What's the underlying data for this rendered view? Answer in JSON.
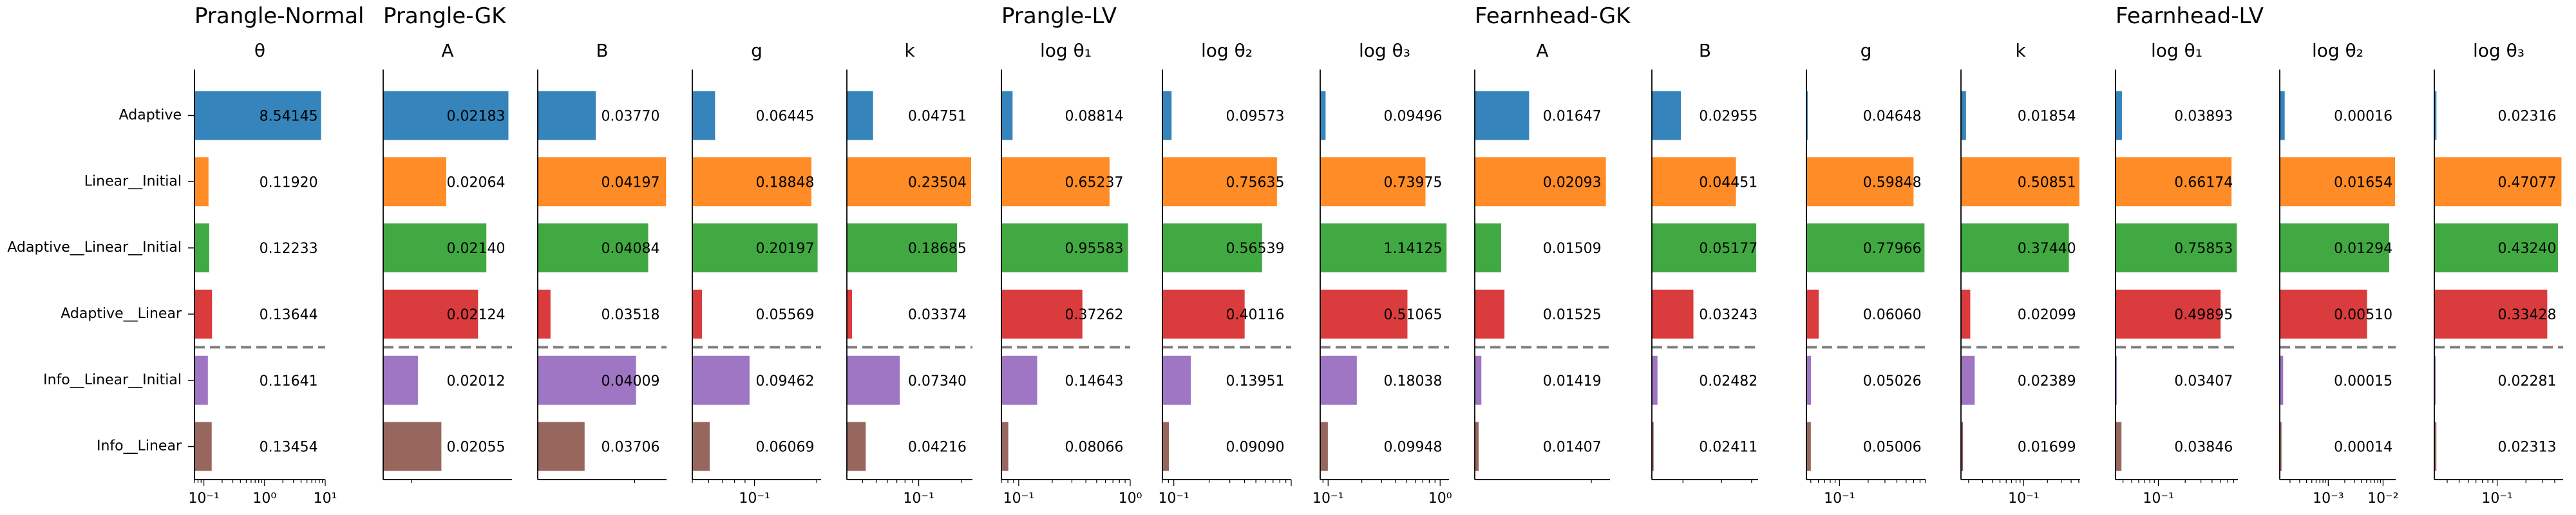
{
  "method_labels": [
    "Adaptive",
    "Linear__Initial",
    "Adaptive__Linear__Initial",
    "Adaptive__Linear",
    "Info__Linear__Initial",
    "Info__Linear"
  ],
  "colors": [
    "#1f77b4",
    "#ff7f0e",
    "#2ca02c",
    "#d62728",
    "#9467bd",
    "#8c564b"
  ],
  "group_titles": [
    "Prangle-Normal",
    "Prangle-GK",
    "Prangle-LV",
    "Fearnhead-GK",
    "Fearnhead-LV"
  ],
  "chart_data": {
    "type": "bar",
    "orientation": "horizontal",
    "categories": [
      "Adaptive",
      "Linear__Initial",
      "Adaptive__Linear__Initial",
      "Adaptive__Linear",
      "Info__Linear__Initial",
      "Info__Linear"
    ],
    "separator_after_index": 3,
    "panels": [
      {
        "group": "Prangle-Normal",
        "title": "θ",
        "xscale": "log",
        "xlim": [
          0.07,
          10
        ],
        "ticks": [
          {
            "v": 0.1,
            "l": "10⁻¹"
          },
          {
            "v": 1,
            "l": "10⁰"
          },
          {
            "v": 10,
            "l": "10¹"
          }
        ],
        "values": [
          8.54145,
          0.1192,
          0.12233,
          0.13644,
          0.11641,
          0.13454
        ],
        "labels": [
          "8.54145",
          "0.11920",
          "0.12233",
          "0.13644",
          "0.11641",
          "0.13454"
        ]
      },
      {
        "group": "Prangle-GK",
        "title": "A",
        "xscale": "log",
        "xlim": [
          0.0195,
          0.0219
        ],
        "ticks": [],
        "values": [
          0.02183,
          0.02064,
          0.0214,
          0.02124,
          0.02012,
          0.02055
        ],
        "labels": [
          "0.02183",
          "0.02064",
          "0.02140",
          "0.02124",
          "0.02012",
          "0.02055"
        ]
      },
      {
        "group": "",
        "title": "B",
        "xscale": "log",
        "xlim": [
          0.0345,
          0.042
        ],
        "ticks": [],
        "values": [
          0.0377,
          0.04197,
          0.04084,
          0.03518,
          0.04009,
          0.03706
        ],
        "labels": [
          "0.03770",
          "0.04197",
          "0.04084",
          "0.03518",
          "0.04009",
          "0.03706"
        ]
      },
      {
        "group": "",
        "title": "g",
        "xscale": "log",
        "xlim": [
          0.05,
          0.21
        ],
        "ticks": [
          {
            "v": 0.1,
            "l": "10⁻¹"
          }
        ],
        "values": [
          0.06445,
          0.18848,
          0.20197,
          0.05569,
          0.09462,
          0.06069
        ],
        "labels": [
          "0.06445",
          "0.18848",
          "0.20197",
          "0.05569",
          "0.09462",
          "0.06069"
        ]
      },
      {
        "group": "",
        "title": "k",
        "xscale": "log",
        "xlim": [
          0.031,
          0.24
        ],
        "ticks": [
          {
            "v": 0.1,
            "l": "10⁻¹"
          }
        ],
        "values": [
          0.04751,
          0.23504,
          0.18685,
          0.03374,
          0.0734,
          0.04216
        ],
        "labels": [
          "0.04751",
          "0.23504",
          "0.18685",
          "0.03374",
          "0.07340",
          "0.04216"
        ]
      },
      {
        "group": "Prangle-LV",
        "title": "log θ₁",
        "xscale": "log",
        "xlim": [
          0.07,
          1.0
        ],
        "ticks": [
          {
            "v": 0.1,
            "l": "10⁻¹"
          },
          {
            "v": 1,
            "l": "10⁰"
          }
        ],
        "values": [
          0.08814,
          0.65237,
          0.95583,
          0.37262,
          0.14643,
          0.08066
        ],
        "labels": [
          "0.08814",
          "0.65237",
          "0.95583",
          "0.37262",
          "0.14643",
          "0.08066"
        ]
      },
      {
        "group": "",
        "title": "log θ₂",
        "xscale": "log",
        "xlim": [
          0.08,
          1.0
        ],
        "ticks": [
          {
            "v": 0.1,
            "l": "10⁻¹"
          }
        ],
        "values": [
          0.09573,
          0.75635,
          0.56539,
          0.40116,
          0.13951,
          0.0909
        ],
        "labels": [
          "0.09573",
          "0.75635",
          "0.56539",
          "0.40116",
          "0.13951",
          "0.09090"
        ]
      },
      {
        "group": "",
        "title": "log θ₃",
        "xscale": "log",
        "xlim": [
          0.085,
          1.2
        ],
        "ticks": [
          {
            "v": 0.1,
            "l": "10⁻¹"
          },
          {
            "v": 1,
            "l": "10⁰"
          }
        ],
        "values": [
          0.09496,
          0.73975,
          1.14125,
          0.51065,
          0.18038,
          0.09948
        ],
        "labels": [
          "0.09496",
          "0.73975",
          "1.14125",
          "0.51065",
          "0.18038",
          "0.09948"
        ]
      },
      {
        "group": "Fearnhead-GK",
        "title": "A",
        "xscale": "log",
        "xlim": [
          0.0139,
          0.0212
        ],
        "ticks": [],
        "values": [
          0.01647,
          0.02093,
          0.01509,
          0.01525,
          0.01419,
          0.01407
        ],
        "labels": [
          "0.01647",
          "0.02093",
          "0.01509",
          "0.01525",
          "0.01419",
          "0.01407"
        ]
      },
      {
        "group": "",
        "title": "B",
        "xscale": "log",
        "xlim": [
          0.0238,
          0.0525
        ],
        "ticks": [],
        "values": [
          0.02955,
          0.04451,
          0.05177,
          0.03243,
          0.02482,
          0.02411
        ],
        "labels": [
          "0.02955",
          "0.04451",
          "0.05177",
          "0.03243",
          "0.02482",
          "0.02411"
        ]
      },
      {
        "group": "",
        "title": "g",
        "xscale": "log",
        "xlim": [
          0.045,
          0.8
        ],
        "ticks": [
          {
            "v": 0.1,
            "l": "10⁻¹"
          }
        ],
        "values": [
          0.04648,
          0.59848,
          0.77966,
          0.0606,
          0.05026,
          0.05006
        ],
        "labels": [
          "0.04648",
          "0.59848",
          "0.77966",
          "0.06060",
          "0.05026",
          "0.05006"
        ]
      },
      {
        "group": "",
        "title": "k",
        "xscale": "log",
        "xlim": [
          0.016,
          0.52
        ],
        "ticks": [
          {
            "v": 0.1,
            "l": "10⁻¹"
          }
        ],
        "values": [
          0.01854,
          0.50851,
          0.3744,
          0.02099,
          0.02389,
          0.01699
        ],
        "labels": [
          "0.01854",
          "0.50851",
          "0.37440",
          "0.02099",
          "0.02389",
          "0.01699"
        ]
      },
      {
        "group": "Fearnhead-LV",
        "title": "log θ₁",
        "xscale": "log",
        "xlim": [
          0.033,
          0.78
        ],
        "ticks": [
          {
            "v": 0.1,
            "l": "10⁻¹"
          }
        ],
        "values": [
          0.03893,
          0.66174,
          0.75853,
          0.49895,
          0.03407,
          0.03846
        ],
        "labels": [
          "0.03893",
          "0.66174",
          "0.75853",
          "0.49895",
          "0.03407",
          "0.03846"
        ]
      },
      {
        "group": "",
        "title": "log θ₂",
        "xscale": "log",
        "xlim": [
          0.00013,
          0.017
        ],
        "ticks": [
          {
            "v": 0.001,
            "l": "10⁻³"
          },
          {
            "v": 0.01,
            "l": "10⁻²"
          }
        ],
        "values": [
          0.00016,
          0.01654,
          0.01294,
          0.0051,
          0.00015,
          0.00014
        ],
        "labels": [
          "0.00016",
          "0.01654",
          "0.01294",
          "0.00510",
          "0.00015",
          "0.00014"
        ]
      },
      {
        "group": "",
        "title": "log θ₃",
        "xscale": "log",
        "xlim": [
          0.022,
          0.49
        ],
        "ticks": [
          {
            "v": 0.1,
            "l": "10⁻¹"
          }
        ],
        "values": [
          0.02316,
          0.47077,
          0.4324,
          0.33428,
          0.02281,
          0.02313
        ],
        "labels": [
          "0.02316",
          "0.47077",
          "0.43240",
          "0.33428",
          "0.02281",
          "0.02313"
        ]
      }
    ]
  }
}
